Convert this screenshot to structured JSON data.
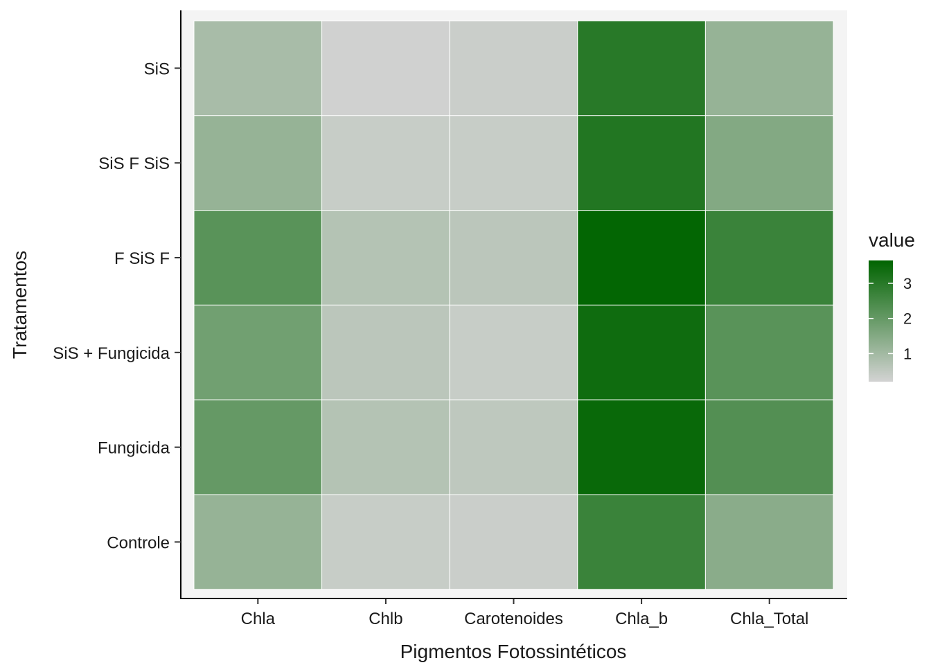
{
  "chart_data": {
    "type": "heatmap",
    "title": "",
    "xlabel": "Pigmentos Fotossintéticos",
    "ylabel": "Tratamentos",
    "x_categories": [
      "Chla",
      "Chlb",
      "Carotenoides",
      "Chla_b",
      "Chla_Total"
    ],
    "y_categories": [
      "SiS",
      "SiS F SiS",
      "F SiS F",
      "SiS + Fungicida",
      "Fungicida",
      "Controle"
    ],
    "values": [
      [
        0.9,
        0.25,
        0.35,
        3.0,
        1.2
      ],
      [
        1.2,
        0.4,
        0.4,
        3.1,
        1.5
      ],
      [
        2.2,
        0.7,
        0.6,
        3.6,
        2.7
      ],
      [
        1.8,
        0.6,
        0.4,
        3.4,
        2.2
      ],
      [
        2.0,
        0.7,
        0.55,
        3.5,
        2.3
      ],
      [
        1.2,
        0.4,
        0.35,
        2.7,
        1.4
      ]
    ],
    "legend": {
      "title": "value",
      "ticks": [
        1,
        2,
        3
      ],
      "min": 0.2,
      "max": 3.65,
      "low_color": "#d3d3d3",
      "high_color": "#006400",
      "position": "right"
    },
    "grid": false,
    "panel_background": "#f4f4f4"
  }
}
